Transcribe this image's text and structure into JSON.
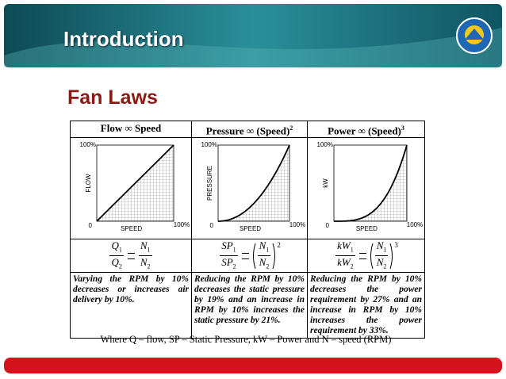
{
  "header": {
    "title": "Introduction"
  },
  "heading": "Fan Laws",
  "table": {
    "columns": [
      {
        "title": "Flow ∞ Speed",
        "chart": {
          "y_max_label": "100%",
          "origin_label": "0",
          "x_max_label": "100%",
          "x_label": "SPEED",
          "y_label": "FLOW"
        },
        "formula": {
          "lhs_num": [
            "Q",
            "1"
          ],
          "lhs_den": [
            "Q",
            "2"
          ],
          "rhs_num": [
            "N",
            "1"
          ],
          "rhs_den": [
            "N",
            "2"
          ]
        },
        "description": "Varying the RPM by 10% decreases or increases air delivery by 10%."
      },
      {
        "title": "Pressure ∞ (Speed)",
        "title_exponent": "2",
        "chart": {
          "y_max_label": "100%",
          "origin_label": "0",
          "x_max_label": "100%",
          "x_label": "SPEED",
          "y_label": "PRESSURE"
        },
        "formula": {
          "lhs_num": [
            "SP",
            "1"
          ],
          "lhs_den": [
            "SP",
            "2"
          ],
          "rhs_num": [
            "N",
            "1"
          ],
          "rhs_den": [
            "N",
            "2"
          ],
          "exponent": "2"
        },
        "description": "Reducing the RPM by 10% decreases the static pressure by 19% and an increase in RPM by 10% increases the static pressure by 21%."
      },
      {
        "title": "Power ∞ (Speed)",
        "title_exponent": "3",
        "chart": {
          "y_max_label": "100%",
          "origin_label": "0",
          "x_max_label": "100%",
          "x_label": "SPEED",
          "y_label": "kW"
        },
        "formula": {
          "lhs_num": [
            "kW",
            "1"
          ],
          "lhs_den": [
            "kW",
            "2"
          ],
          "rhs_num": [
            "N",
            "1"
          ],
          "rhs_den": [
            "N",
            "2"
          ],
          "exponent": "3"
        },
        "description": "Reducing the RPM by 10% decreases the power requirement by 27% and an increase in RPM by 10% increases the power requirement by 33%."
      }
    ]
  },
  "footnote": "Where Q – flow, SP – Static Pressure, kW – Power and N – speed (RPM)"
}
